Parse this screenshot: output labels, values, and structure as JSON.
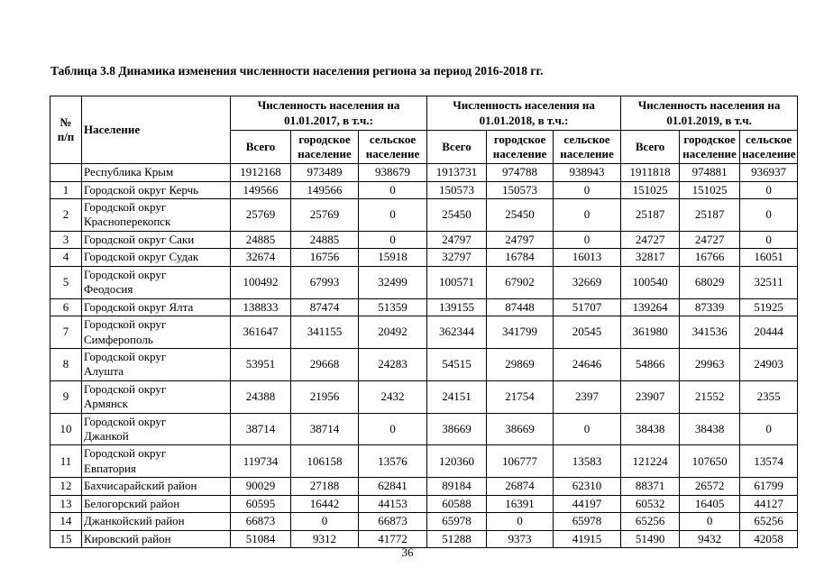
{
  "page": {
    "title": "Таблица 3.8 Динамика изменения численности населения региона за период 2016-2018 гг.",
    "page_number": "36"
  },
  "table": {
    "corner_headers": {
      "num": "№\nп/п",
      "name": "Население"
    },
    "groups": [
      {
        "label": "Численность населения на 01.01.2017, в т.ч.:"
      },
      {
        "label": "Численность населения на 01.01.2018, в т.ч.:"
      },
      {
        "label": "Численность населения на 01.01.2019, в т.ч."
      }
    ],
    "sub_headers": [
      "Всего",
      "городское население",
      "сельское население"
    ],
    "rows": [
      {
        "num": "",
        "name": "Республика Крым",
        "values": [
          1912168,
          973489,
          938679,
          1913731,
          974788,
          938943,
          1911818,
          974881,
          936937
        ]
      },
      {
        "num": "1",
        "name": "Городской округ Керчь",
        "values": [
          149566,
          149566,
          0,
          150573,
          150573,
          0,
          151025,
          151025,
          0
        ]
      },
      {
        "num": "2",
        "name": "Городской округ\nКрасноперекопск",
        "values": [
          25769,
          25769,
          0,
          25450,
          25450,
          0,
          25187,
          25187,
          0
        ]
      },
      {
        "num": "3",
        "name": "Городской округ Саки",
        "values": [
          24885,
          24885,
          0,
          24797,
          24797,
          0,
          24727,
          24727,
          0
        ]
      },
      {
        "num": "4",
        "name": "Городской округ Судак",
        "values": [
          32674,
          16756,
          15918,
          32797,
          16784,
          16013,
          32817,
          16766,
          16051
        ]
      },
      {
        "num": "5",
        "name": "Городской округ\nФеодосия",
        "values": [
          100492,
          67993,
          32499,
          100571,
          67902,
          32669,
          100540,
          68029,
          32511
        ]
      },
      {
        "num": "6",
        "name": "Городской округ Ялта",
        "values": [
          138833,
          87474,
          51359,
          139155,
          87448,
          51707,
          139264,
          87339,
          51925
        ]
      },
      {
        "num": "7",
        "name": "Городской округ\nСимферополь",
        "values": [
          361647,
          341155,
          20492,
          362344,
          341799,
          20545,
          361980,
          341536,
          20444
        ]
      },
      {
        "num": "8",
        "name": "Городской округ\nАлушта",
        "values": [
          53951,
          29668,
          24283,
          54515,
          29869,
          24646,
          54866,
          29963,
          24903
        ]
      },
      {
        "num": "9",
        "name": "Городской округ\nАрмянск",
        "values": [
          24388,
          21956,
          2432,
          24151,
          21754,
          2397,
          23907,
          21552,
          2355
        ]
      },
      {
        "num": "10",
        "name": "Городской округ\nДжанкой",
        "values": [
          38714,
          38714,
          0,
          38669,
          38669,
          0,
          38438,
          38438,
          0
        ]
      },
      {
        "num": "11",
        "name": "Городской округ\nЕвпатория",
        "values": [
          119734,
          106158,
          13576,
          120360,
          106777,
          13583,
          121224,
          107650,
          13574
        ]
      },
      {
        "num": "12",
        "name": "Бахчисарайский район",
        "values": [
          90029,
          27188,
          62841,
          89184,
          26874,
          62310,
          88371,
          26572,
          61799
        ]
      },
      {
        "num": "13",
        "name": "Белогорский район",
        "values": [
          60595,
          16442,
          44153,
          60588,
          16391,
          44197,
          60532,
          16405,
          44127
        ]
      },
      {
        "num": "14",
        "name": "Джанкойский район",
        "values": [
          66873,
          0,
          66873,
          65978,
          0,
          65978,
          65256,
          0,
          65256
        ]
      },
      {
        "num": "15",
        "name": "Кировский район",
        "values": [
          51084,
          9312,
          41772,
          51288,
          9373,
          41915,
          51490,
          9432,
          42058
        ]
      }
    ]
  }
}
